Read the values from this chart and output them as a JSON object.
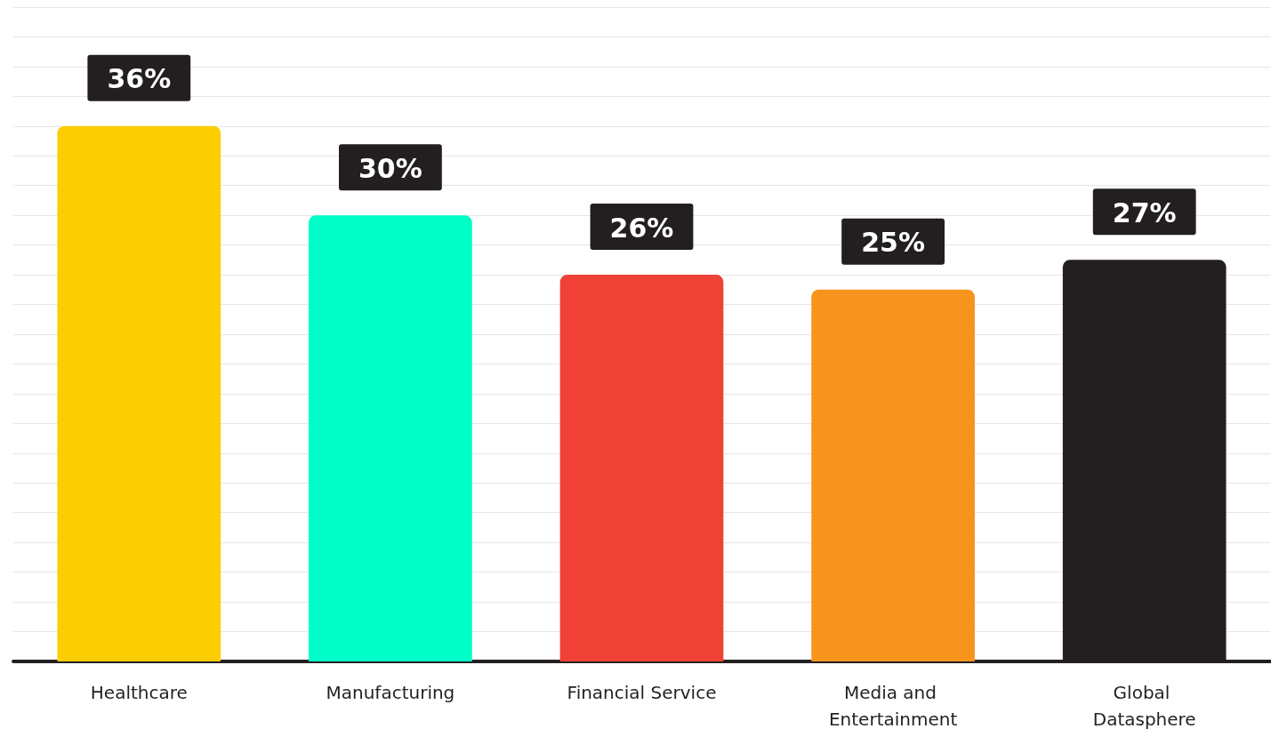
{
  "chart_data": {
    "type": "bar",
    "categories": [
      "Healthcare",
      "Manufacturing",
      "Financial Service",
      "Media and Entertainment",
      "Global Datasphere"
    ],
    "values": [
      36,
      30,
      26,
      25,
      27
    ],
    "colors": [
      "#fccd00",
      "#00ffc8",
      "#ef4136",
      "#f7941d",
      "#231f20"
    ],
    "value_labels": [
      "36%",
      "30%",
      "26%",
      "25%",
      "27%"
    ],
    "ylim": [
      0,
      44
    ],
    "yticks": [
      {
        "value": 0,
        "label": null
      },
      {
        "value": 2,
        "label": null
      },
      {
        "value": 4,
        "label": null
      },
      {
        "value": 6,
        "label": null
      },
      {
        "value": 8,
        "label": null
      },
      {
        "value": 10,
        "label": null
      },
      {
        "value": 12,
        "label": null
      },
      {
        "value": 14,
        "label": null
      },
      {
        "value": 16,
        "label": null
      },
      {
        "value": 18,
        "label": null
      },
      {
        "value": 20,
        "label": null
      },
      {
        "value": 22,
        "label": null
      },
      {
        "value": 24,
        "label": null
      },
      {
        "value": 26,
        "label": null
      },
      {
        "value": 28,
        "label": null
      },
      {
        "value": 30,
        "label": null
      },
      {
        "value": 32,
        "label": null
      },
      {
        "value": 34,
        "label": null
      },
      {
        "value": 36,
        "label": null
      },
      {
        "value": 38,
        "label": null
      },
      {
        "value": 40,
        "label": null
      },
      {
        "value": 42,
        "label": null
      },
      {
        "value": 44,
        "label": null
      }
    ],
    "grid": "y"
  }
}
